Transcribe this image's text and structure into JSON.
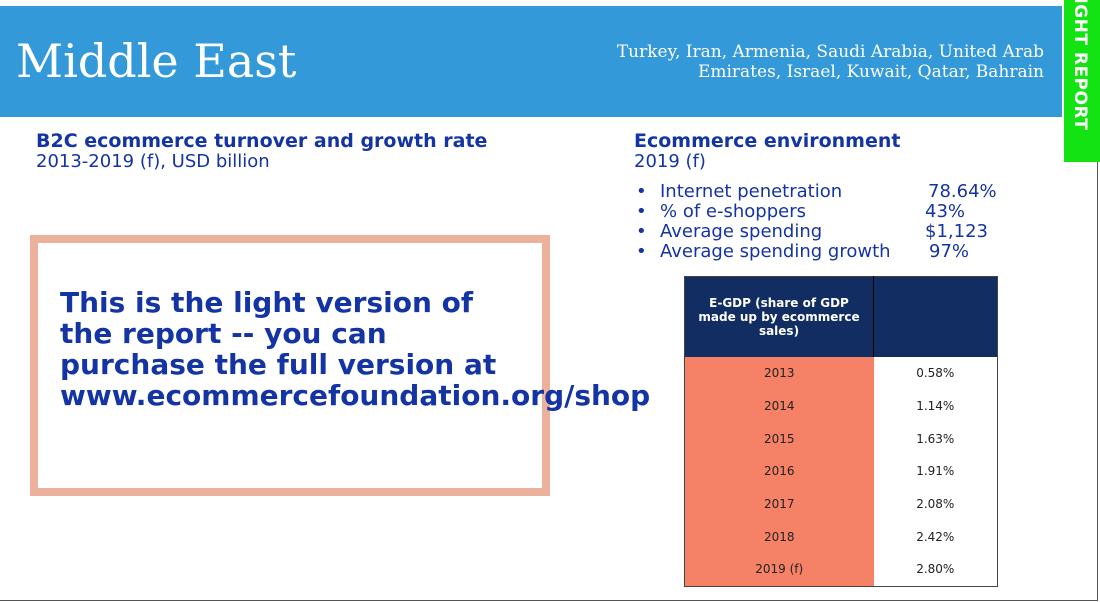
{
  "header": {
    "title": "Middle East",
    "countries": "Turkey, Iran, Armenia, Saudi Arabia, United Arab Emirates, Israel, Kuwait, Qatar, Bahrain",
    "tab": "LIGHT REPORT"
  },
  "left": {
    "heading": "B2C ecommerce turnover and growth rate",
    "subheading": "2013-2019 (f), USD billion",
    "notice": "This is the light version of the report -- you can purchase the full version at www.ecommercefoundation.org/shop"
  },
  "right": {
    "heading": "Ecommerce environment",
    "subheading": "2019 (f)",
    "items": [
      {
        "label": "Internet penetration",
        "value": "78.64%"
      },
      {
        "label": "% of e-shoppers",
        "value": "43%"
      },
      {
        "label": "Average spending",
        "value": "$1,123"
      },
      {
        "label": "Average spending growth",
        "value": "97%"
      }
    ],
    "table": {
      "header": "E-GDP (share of GDP made up by ecommerce sales)",
      "header2": "",
      "rows": [
        {
          "year": "2013",
          "value": "0.58%"
        },
        {
          "year": "2014",
          "value": "1.14%"
        },
        {
          "year": "2015",
          "value": "1.63%"
        },
        {
          "year": "2016",
          "value": "1.91%"
        },
        {
          "year": "2017",
          "value": "2.08%"
        },
        {
          "year": "2018",
          "value": "2.42%"
        },
        {
          "year": "2019 (f)",
          "value": "2.80%"
        }
      ]
    }
  },
  "colors": {
    "header": "#3399d9",
    "tab": "#13e313",
    "text": "#1434a4",
    "table_header": "#112d61",
    "table_year": "#f58266",
    "notice_border": "#ecb19b"
  }
}
